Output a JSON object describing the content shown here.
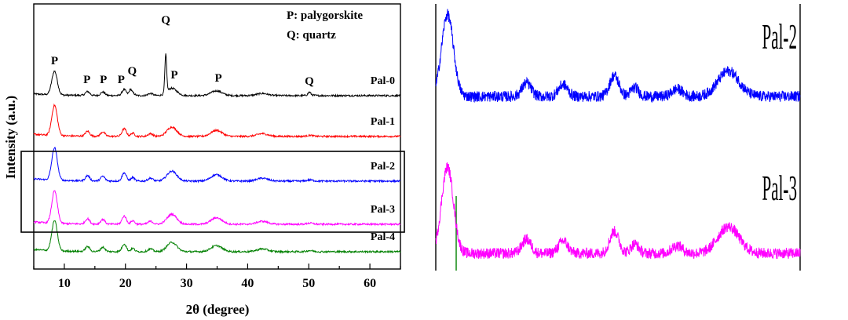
{
  "chart_data": [
    {
      "type": "line",
      "xlabel": "2θ (degree)",
      "ylabel": "Intensity (a.u.)",
      "xlim": [
        5,
        65
      ],
      "x_ticks": [
        10,
        20,
        30,
        40,
        50,
        60
      ],
      "legend_lines": [
        "P: palygorskite",
        "Q: quartz"
      ],
      "series": [
        {
          "name": "Pal-0",
          "color": "#000000",
          "offset": 4
        },
        {
          "name": "Pal-1",
          "color": "#ff0000",
          "offset": 3
        },
        {
          "name": "Pal-2",
          "color": "#0000ff",
          "offset": 2
        },
        {
          "name": "Pal-3",
          "color": "#ff00ff",
          "offset": 1
        },
        {
          "name": "Pal-4",
          "color": "#008000",
          "offset": 0
        }
      ],
      "peaks": [
        {
          "x": 8.4,
          "h": 55,
          "w": 0.45
        },
        {
          "x": 13.8,
          "h": 9,
          "w": 0.35
        },
        {
          "x": 16.3,
          "h": 8,
          "w": 0.35
        },
        {
          "x": 19.8,
          "h": 14,
          "w": 0.35
        },
        {
          "x": 21.2,
          "h": 6,
          "w": 0.3
        },
        {
          "x": 24.1,
          "h": 5,
          "w": 0.4
        },
        {
          "x": 27.6,
          "h": 17,
          "w": 0.8
        },
        {
          "x": 34.9,
          "h": 11,
          "w": 0.9
        },
        {
          "x": 42.4,
          "h": 5,
          "w": 0.9
        },
        {
          "x": 50.2,
          "h": 2,
          "w": 0.5
        }
      ],
      "quartz_peaks": [
        {
          "x": 26.6,
          "h": 88,
          "w": 0.15
        },
        {
          "x": 20.8,
          "h": 12,
          "w": 0.2
        },
        {
          "x": 50.1,
          "h": 6,
          "w": 0.2
        }
      ],
      "annotations": [
        {
          "text": "P",
          "x": 8.4
        },
        {
          "text": "P",
          "x": 13.7
        },
        {
          "text": "P",
          "x": 16.4
        },
        {
          "text": "P",
          "x": 19.3
        },
        {
          "text": "Q",
          "x": 21.1
        },
        {
          "text": "Q",
          "x": 26.6
        },
        {
          "text": "P",
          "x": 28.0
        },
        {
          "text": "P",
          "x": 35.2
        },
        {
          "text": "Q",
          "x": 50.1
        }
      ],
      "highlight_box": [
        "Pal-2",
        "Pal-3"
      ]
    },
    {
      "type": "line",
      "panel": "zoomed comparison",
      "series": [
        {
          "name": "Pal-2",
          "color": "#0000ff"
        },
        {
          "name": "Pal-3",
          "color": "#ff00ff"
        }
      ],
      "panel_labels": [
        "Pal-2",
        "Pal-3"
      ],
      "marker_line_color": "#008000"
    }
  ]
}
